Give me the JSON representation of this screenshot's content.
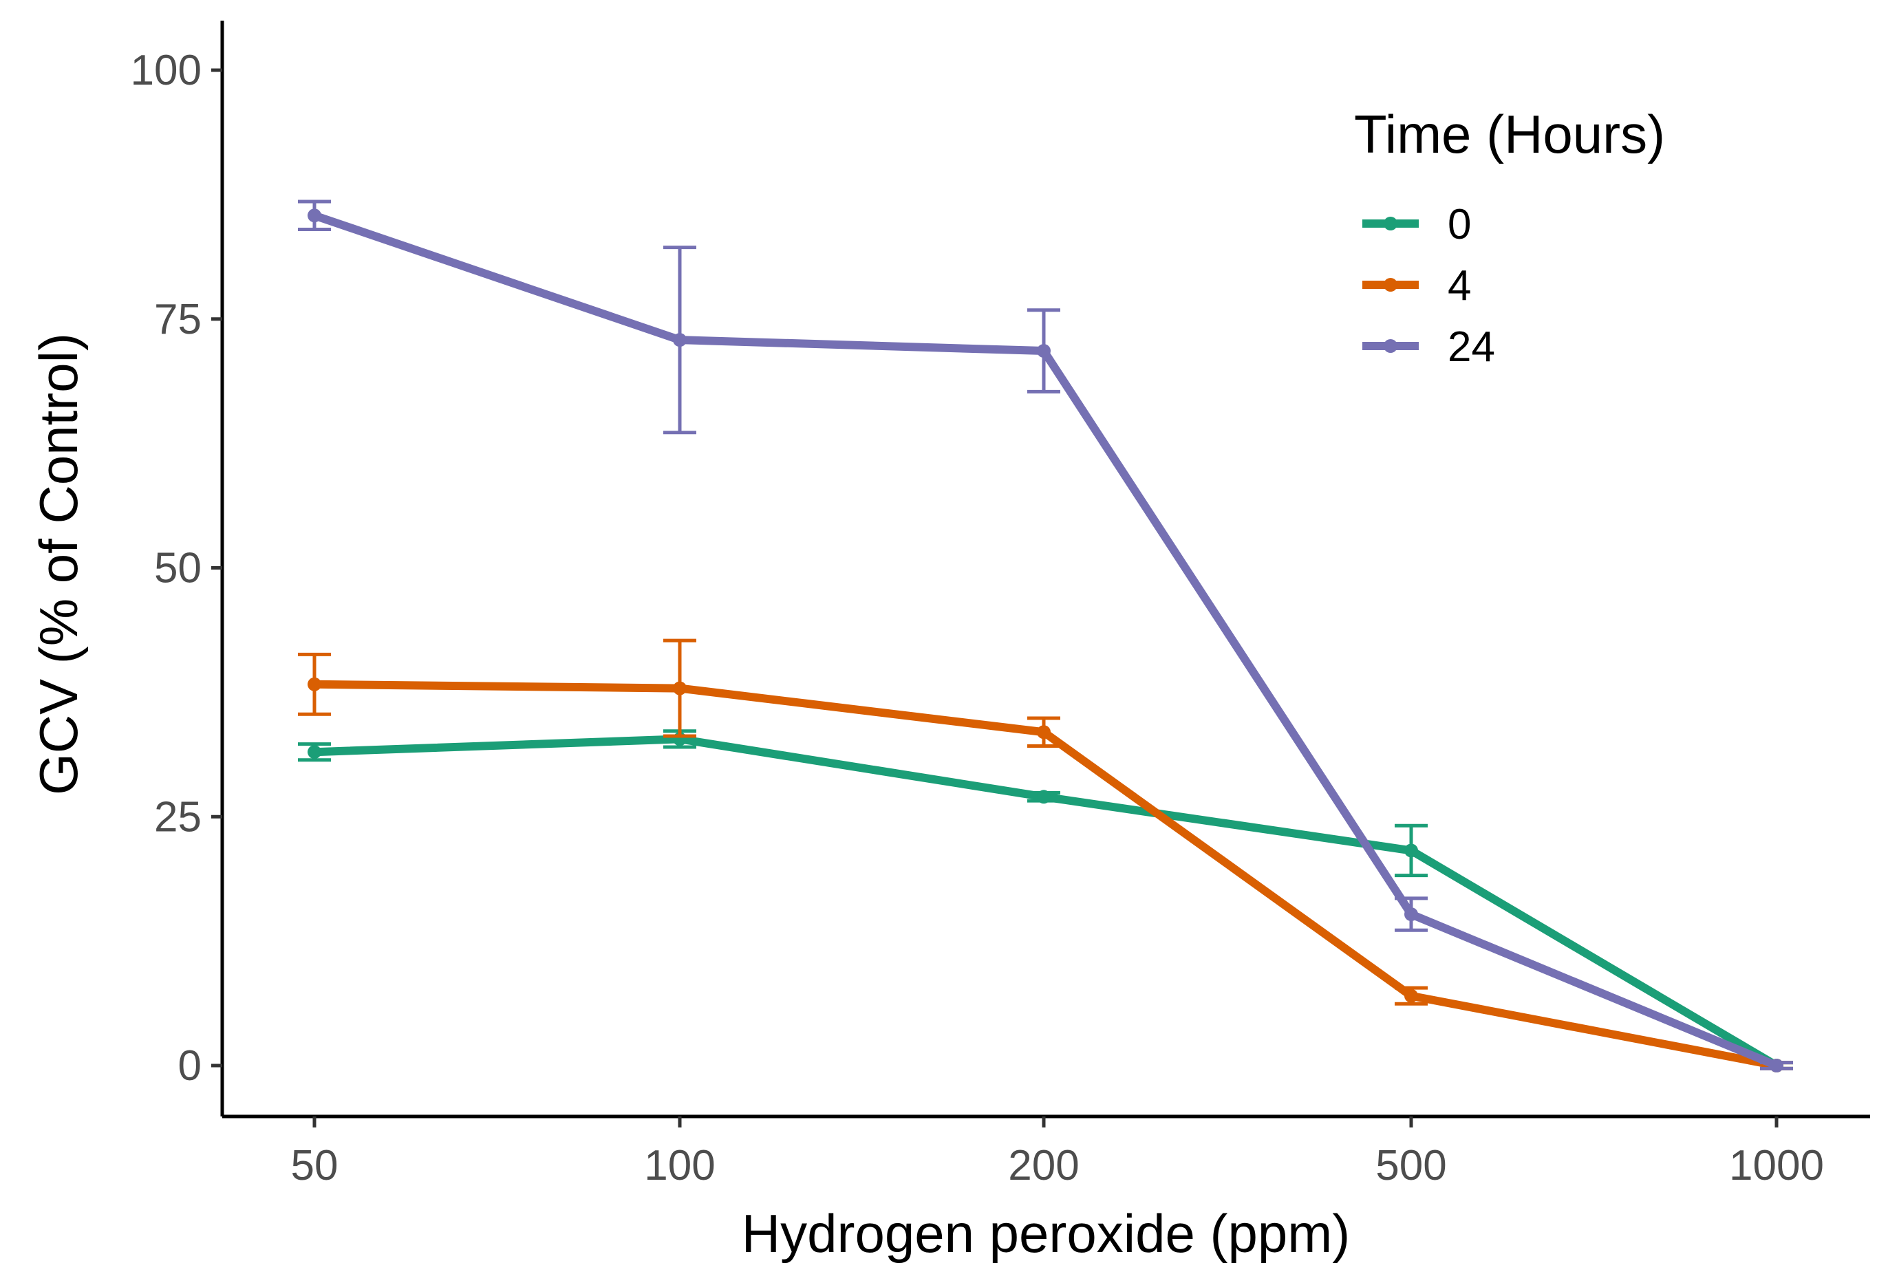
{
  "chart_data": {
    "type": "line",
    "xlabel": "Hydrogen peroxide (ppm)",
    "ylabel": "GCV (% of Control)",
    "categories": [
      "50",
      "100",
      "200",
      "500",
      "1000"
    ],
    "ylim": [
      -5,
      105
    ],
    "yticks": [
      0,
      25,
      50,
      75,
      100
    ],
    "grid": false,
    "legend": {
      "title": "Time (Hours)",
      "position": "top-right"
    },
    "series": [
      {
        "name": "0",
        "color": "#1b9e77",
        "values": [
          31.5,
          32.8,
          27.0,
          21.6,
          0.0
        ],
        "err": [
          0.8,
          0.8,
          0.4,
          2.5,
          0.3
        ]
      },
      {
        "name": "4",
        "color": "#d95f02",
        "values": [
          38.3,
          37.9,
          33.5,
          7.0,
          0.0
        ],
        "err": [
          3.0,
          4.8,
          1.4,
          0.8,
          0.3
        ]
      },
      {
        "name": "24",
        "color": "#7570b3",
        "values": [
          85.4,
          72.9,
          71.8,
          15.2,
          0.0
        ],
        "err": [
          1.4,
          9.3,
          4.1,
          1.6,
          0.3
        ]
      }
    ]
  }
}
